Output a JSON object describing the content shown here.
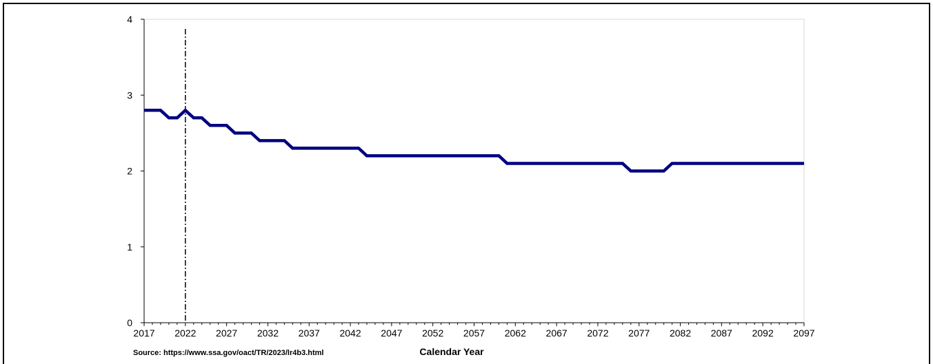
{
  "chart_data": {
    "type": "line",
    "xlabel": "Calendar Year",
    "ylabel": "",
    "source": "Source: https://www.ssa.gov/oact/TR/2023/lr4b3.html",
    "xlim": [
      2017,
      2097
    ],
    "ylim": [
      0,
      4
    ],
    "x_ticks": [
      2017,
      2022,
      2027,
      2032,
      2037,
      2042,
      2047,
      2052,
      2057,
      2062,
      2067,
      2072,
      2077,
      2082,
      2087,
      2092,
      2097
    ],
    "y_ticks": [
      0,
      1,
      2,
      3,
      4
    ],
    "vertical_marker_x": 2022,
    "grid": false,
    "series_color": "#000080",
    "series": [
      {
        "x": [
          2017,
          2019,
          2020,
          2021,
          2022,
          2023,
          2024,
          2025,
          2027,
          2028,
          2030,
          2031,
          2034,
          2035,
          2043,
          2044,
          2060,
          2061,
          2075,
          2076,
          2080,
          2081,
          2097
        ],
        "values": [
          2.8,
          2.8,
          2.7,
          2.7,
          2.8,
          2.7,
          2.7,
          2.6,
          2.6,
          2.5,
          2.5,
          2.4,
          2.4,
          2.3,
          2.3,
          2.2,
          2.2,
          2.1,
          2.1,
          2.0,
          2.0,
          2.1,
          2.1
        ]
      }
    ]
  }
}
